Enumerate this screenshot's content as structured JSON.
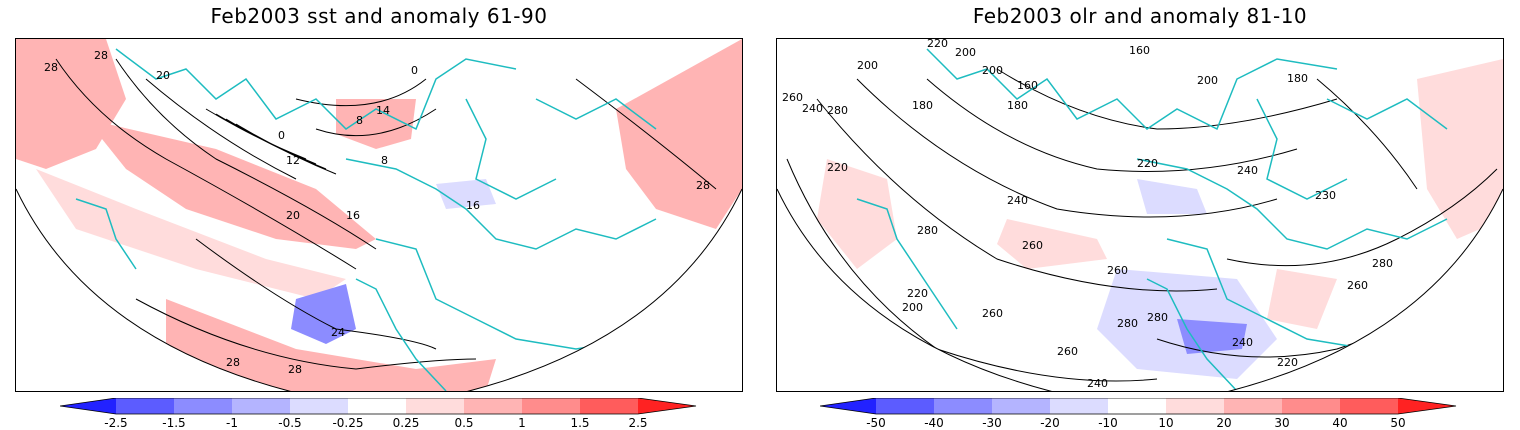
{
  "panels": [
    {
      "title": "Feb2003 sst and anomaly 61-90",
      "contour_labels": [
        "28",
        "28",
        "20",
        "0",
        "12",
        "14",
        "8",
        "8",
        "16",
        "16",
        "20",
        "24",
        "28",
        "28",
        "28",
        "0"
      ],
      "colorbar_ticks": [
        "-2.5",
        "-1.5",
        "-1",
        "-0.5",
        "-0.25",
        "0.25",
        "0.5",
        "1",
        "1.5",
        "2.5"
      ]
    },
    {
      "title": "Feb2003 olr and anomaly 81-10",
      "contour_labels": [
        "220",
        "200",
        "160",
        "180",
        "160",
        "200",
        "180",
        "260",
        "240",
        "280",
        "200",
        "180",
        "200",
        "220",
        "240",
        "220",
        "260",
        "240",
        "280",
        "260",
        "220",
        "200",
        "260",
        "280",
        "280",
        "260",
        "240",
        "220",
        "240",
        "260",
        "280",
        "230"
      ],
      "colorbar_ticks": [
        "-50",
        "-40",
        "-30",
        "-20",
        "-10",
        "10",
        "20",
        "30",
        "40",
        "50"
      ]
    }
  ],
  "colors": {
    "coast": "#1ebcc0",
    "neg": [
      "#2222ff",
      "#5c5cff",
      "#8c8cff",
      "#b4b4ff",
      "#dcdcff"
    ],
    "pos": [
      "#ffdcdc",
      "#ffb4b4",
      "#ff8c8c",
      "#ff5c5c",
      "#ff2222"
    ]
  }
}
